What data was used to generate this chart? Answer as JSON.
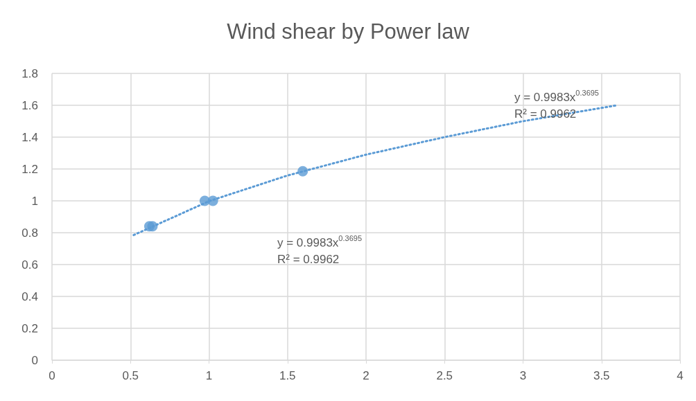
{
  "chart_data": {
    "type": "scatter",
    "title": "Wind shear by Power law",
    "series": [
      {
        "color": "#5b9bd5",
        "marker": "circle",
        "x": [
          0.62,
          0.64,
          0.973,
          1.025,
          1.597
        ],
        "values": [
          0.84,
          0.84,
          1.0,
          1.0,
          1.186
        ]
      },
      {
        "type": "line",
        "color": "#5b9bd5",
        "marker": "none",
        "line_style": "dotted",
        "x": [
          0.52,
          1.0,
          1.5,
          2.0,
          2.5,
          3.0,
          3.6
        ],
        "values": [
          0.785,
          0.998,
          1.159,
          1.29,
          1.4,
          1.5,
          1.6
        ]
      }
    ],
    "annotations": [
      "y = 0.9983x$^{0.3695}$\nR² = 0.9962",
      "y = 0.9983x$^{0.3695}$\nR² = 0.9962"
    ],
    "xlim": [
      0,
      4
    ],
    "xticks": [
      0,
      0.5,
      1,
      1.5,
      2,
      2.5,
      3,
      3.5,
      4
    ],
    "ylim": [
      0,
      1.8
    ],
    "yticks": [
      0,
      0.2,
      0.4,
      0.6,
      0.8,
      1,
      1.2,
      1.4,
      1.6,
      1.8
    ],
    "grid": true
  }
}
